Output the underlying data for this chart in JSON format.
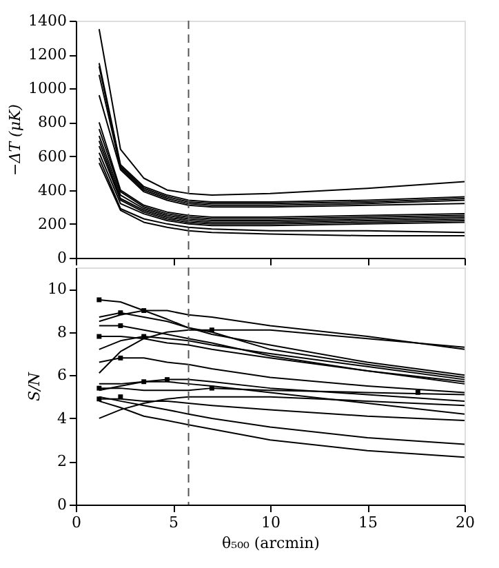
{
  "chart_data": [
    {
      "type": "line",
      "ylabel": "−ΔT (μK)",
      "x": [
        1.2,
        2.3,
        3.5,
        4.7,
        5.8,
        7.0,
        10,
        15,
        20
      ],
      "xlim": [
        0,
        20
      ],
      "xticks": [
        0,
        5,
        10,
        15,
        20
      ],
      "ylim": [
        0,
        1400
      ],
      "yticks": [
        0,
        200,
        400,
        600,
        800,
        1000,
        1200,
        1400
      ],
      "tick_labels": "y",
      "grid": false,
      "legend": false,
      "marker": "none",
      "line_style": "solid",
      "ref_lines": [
        {
          "axis": "x",
          "value": 5.8,
          "label": null,
          "color": "#555555",
          "line_style": "dashed"
        }
      ],
      "series": [
        {
          "color": "#000000",
          "values": [
            1350,
            640,
            470,
            400,
            380,
            370,
            380,
            410,
            450
          ]
        },
        {
          "color": "#000000",
          "values": [
            1150,
            550,
            420,
            370,
            340,
            330,
            330,
            340,
            360
          ]
        },
        {
          "color": "#000000",
          "values": [
            1130,
            540,
            410,
            360,
            330,
            320,
            320,
            330,
            350
          ]
        },
        {
          "color": "#000000",
          "values": [
            1080,
            530,
            400,
            350,
            320,
            310,
            310,
            320,
            340
          ]
        },
        {
          "color": "#000000",
          "values": [
            960,
            520,
            390,
            340,
            310,
            300,
            300,
            310,
            320
          ]
        },
        {
          "color": "#000000",
          "values": [
            800,
            400,
            310,
            270,
            250,
            240,
            240,
            250,
            260
          ]
        },
        {
          "color": "#000000",
          "values": [
            760,
            390,
            300,
            260,
            240,
            230,
            230,
            240,
            250
          ]
        },
        {
          "color": "#000000",
          "values": [
            720,
            370,
            290,
            250,
            230,
            220,
            220,
            230,
            240
          ]
        },
        {
          "color": "#000000",
          "values": [
            690,
            350,
            280,
            240,
            220,
            210,
            210,
            220,
            230
          ]
        },
        {
          "color": "#000000",
          "values": [
            660,
            340,
            270,
            230,
            210,
            200,
            200,
            210,
            220
          ]
        },
        {
          "color": "#000000",
          "values": [
            620,
            320,
            260,
            220,
            200,
            190,
            190,
            200,
            210
          ]
        },
        {
          "color": "#000000",
          "values": [
            590,
            290,
            230,
            200,
            180,
            170,
            160,
            160,
            150
          ]
        },
        {
          "color": "#000000",
          "values": [
            560,
            280,
            210,
            180,
            160,
            150,
            140,
            130,
            130
          ]
        }
      ]
    },
    {
      "type": "line",
      "xlabel": "θ₅₀₀ (arcmin)",
      "ylabel": "S/N",
      "x": [
        1.2,
        2.3,
        3.5,
        4.7,
        5.8,
        7.0,
        10,
        15,
        20
      ],
      "xlim": [
        0,
        20
      ],
      "xticks": [
        0,
        5,
        10,
        15,
        20
      ],
      "ylim": [
        0,
        11
      ],
      "yticks": [
        0,
        2,
        4,
        6,
        8,
        10
      ],
      "grid": false,
      "legend": false,
      "marker": "none",
      "line_style": "solid",
      "ref_lines": [
        {
          "axis": "x",
          "value": 5.8,
          "label": null,
          "color": "#555555",
          "line_style": "dashed"
        }
      ],
      "series": [
        {
          "color": "#000000",
          "values": [
            9.5,
            9.4,
            9.0,
            8.6,
            8.2,
            8.0,
            7.2,
            6.5,
            5.9
          ]
        },
        {
          "color": "#000000",
          "values": [
            8.5,
            8.8,
            9.0,
            9.0,
            8.8,
            8.7,
            8.3,
            7.8,
            7.2
          ]
        },
        {
          "color": "#000000",
          "values": [
            8.7,
            8.9,
            8.7,
            8.5,
            8.2,
            7.9,
            7.4,
            6.6,
            6.0
          ]
        },
        {
          "color": "#000000",
          "values": [
            8.3,
            8.3,
            8.1,
            7.9,
            7.7,
            7.5,
            6.9,
            6.2,
            5.6
          ]
        },
        {
          "color": "#000000",
          "values": [
            7.8,
            7.8,
            7.7,
            7.5,
            7.4,
            7.2,
            6.8,
            6.2,
            5.7
          ]
        },
        {
          "color": "#000000",
          "values": [
            7.2,
            7.6,
            7.8,
            7.7,
            7.6,
            7.4,
            7.0,
            6.4,
            5.8
          ]
        },
        {
          "color": "#000000",
          "values": [
            6.1,
            7.1,
            7.7,
            8.0,
            8.1,
            8.1,
            8.1,
            7.7,
            7.3
          ]
        },
        {
          "color": "#000000",
          "values": [
            6.6,
            6.8,
            6.8,
            6.6,
            6.5,
            6.3,
            5.9,
            5.5,
            5.2
          ]
        },
        {
          "color": "#000000",
          "values": [
            5.6,
            5.6,
            5.7,
            5.8,
            5.8,
            5.7,
            5.4,
            5.1,
            4.8
          ]
        },
        {
          "color": "#000000",
          "values": [
            5.3,
            5.5,
            5.7,
            5.7,
            5.6,
            5.5,
            5.2,
            4.7,
            4.2
          ]
        },
        {
          "color": "#000000",
          "values": [
            5.4,
            5.4,
            5.3,
            5.3,
            5.3,
            5.4,
            5.3,
            5.2,
            5.1
          ]
        },
        {
          "color": "#000000",
          "values": [
            4.9,
            4.9,
            4.8,
            4.8,
            4.7,
            4.6,
            4.4,
            4.1,
            3.9
          ]
        },
        {
          "color": "#000000",
          "values": [
            5.0,
            4.8,
            4.6,
            4.4,
            4.2,
            4.0,
            3.6,
            3.1,
            2.8
          ]
        },
        {
          "color": "#000000",
          "values": [
            4.8,
            4.5,
            4.1,
            3.9,
            3.7,
            3.5,
            3.0,
            2.5,
            2.2
          ]
        },
        {
          "color": "#000000",
          "values": [
            4.0,
            4.4,
            4.7,
            4.9,
            5.0,
            5.0,
            5.0,
            4.8,
            4.6
          ]
        },
        {
          "type": "scatter",
          "marker": "square",
          "color": "#000000",
          "x": [
            1.2,
            3.5,
            2.3,
            2.3,
            1.2,
            3.5,
            7.0,
            2.3,
            4.7,
            3.5,
            1.2,
            7.0,
            17.6,
            1.2,
            2.3
          ],
          "values": [
            9.5,
            9.0,
            8.9,
            8.3,
            7.8,
            7.8,
            8.1,
            6.8,
            5.8,
            5.7,
            5.4,
            5.4,
            5.2,
            4.9,
            5.0
          ]
        }
      ]
    }
  ]
}
